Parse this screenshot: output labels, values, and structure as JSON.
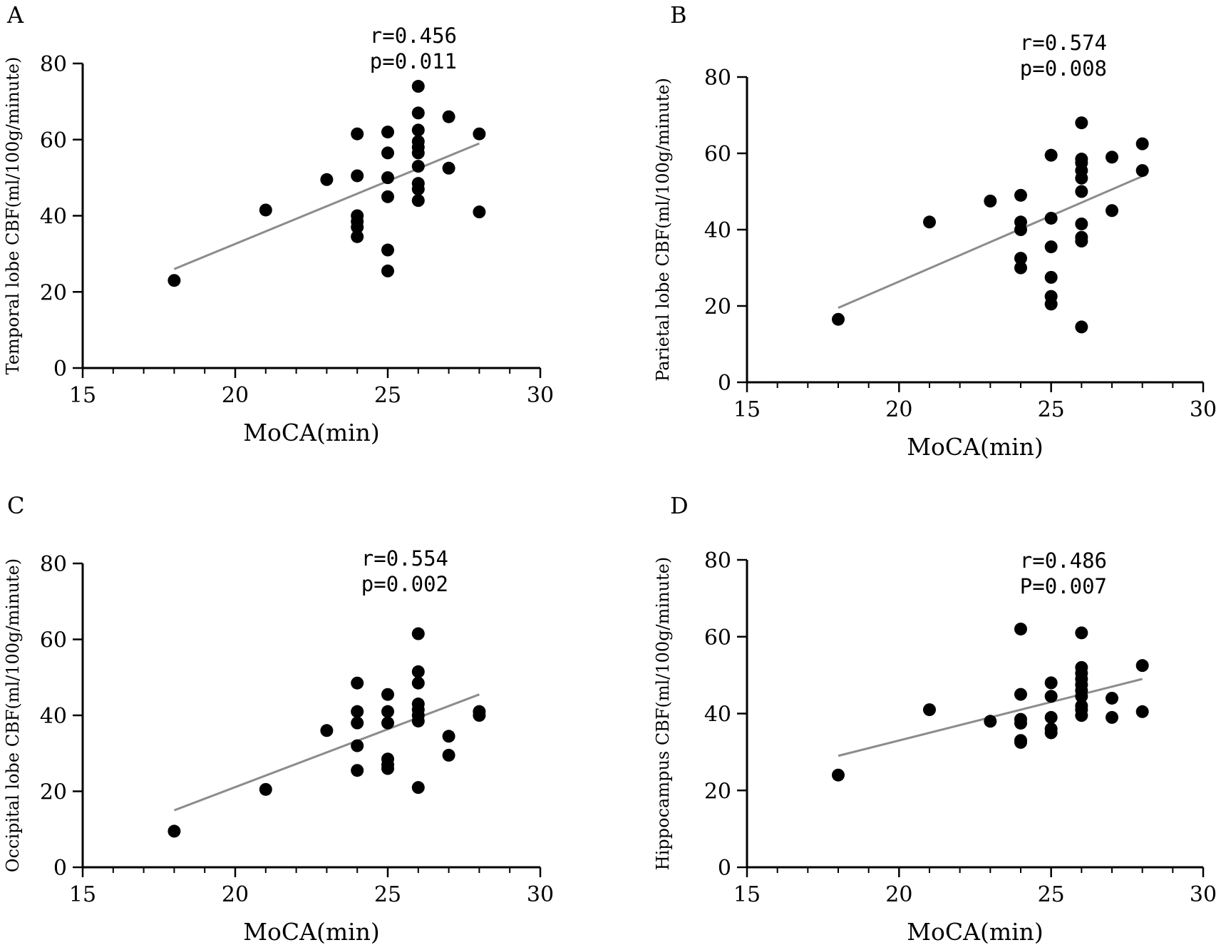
{
  "chart_data": [
    {
      "panel": "A",
      "type": "scatter",
      "xlabel": "MoCA(min)",
      "ylabel": "Temporal lobe CBF(ml/100g/minute)",
      "xlim": [
        15,
        30
      ],
      "ylim": [
        0,
        80
      ],
      "xticks": [
        "15",
        "20",
        "25",
        "30"
      ],
      "yticks": [
        "0",
        "20",
        "40",
        "60",
        "80"
      ],
      "stats": [
        "r=0.456",
        "p=0.011"
      ],
      "fit": {
        "x": [
          18,
          28
        ],
        "y": [
          26,
          59
        ]
      },
      "points": [
        [
          18,
          23
        ],
        [
          21,
          41.5
        ],
        [
          23,
          49.5
        ],
        [
          24,
          61.5
        ],
        [
          24,
          50.5
        ],
        [
          24,
          40
        ],
        [
          24,
          38.5
        ],
        [
          24,
          37
        ],
        [
          24,
          34.5
        ],
        [
          25,
          62
        ],
        [
          25,
          56.5
        ],
        [
          25,
          50
        ],
        [
          25,
          45
        ],
        [
          25,
          31
        ],
        [
          25,
          25.5
        ],
        [
          26,
          74
        ],
        [
          26,
          67
        ],
        [
          26,
          62.5
        ],
        [
          26,
          59.5
        ],
        [
          26,
          58
        ],
        [
          26,
          56.5
        ],
        [
          26,
          53
        ],
        [
          26,
          48.5
        ],
        [
          26,
          47
        ],
        [
          26,
          44
        ],
        [
          27,
          66
        ],
        [
          27,
          52.5
        ],
        [
          28,
          61.5
        ],
        [
          28,
          41
        ]
      ]
    },
    {
      "panel": "B",
      "type": "scatter",
      "xlabel": "MoCA(min)",
      "ylabel": "Parietal lobe CBF(ml/100g/minute)",
      "xlim": [
        15,
        30
      ],
      "ylim": [
        0,
        80
      ],
      "xticks": [
        "15",
        "20",
        "25",
        "30"
      ],
      "yticks": [
        "0",
        "20",
        "40",
        "60",
        "80"
      ],
      "stats": [
        "r=0.574",
        "p=0.008"
      ],
      "fit": {
        "x": [
          18,
          28
        ],
        "y": [
          19.5,
          54
        ]
      },
      "points": [
        [
          18,
          16.5
        ],
        [
          21,
          42
        ],
        [
          23,
          47.5
        ],
        [
          24,
          49
        ],
        [
          24,
          42
        ],
        [
          24,
          40
        ],
        [
          24,
          32.5
        ],
        [
          24,
          30
        ],
        [
          25,
          59.5
        ],
        [
          25,
          43
        ],
        [
          25,
          35.5
        ],
        [
          25,
          27.5
        ],
        [
          25,
          22.5
        ],
        [
          25,
          20.5
        ],
        [
          26,
          68
        ],
        [
          26,
          58.5
        ],
        [
          26,
          57.5
        ],
        [
          26,
          55.5
        ],
        [
          26,
          53.5
        ],
        [
          26,
          50
        ],
        [
          26,
          41.5
        ],
        [
          26,
          38
        ],
        [
          26,
          37
        ],
        [
          26,
          14.5
        ],
        [
          27,
          59
        ],
        [
          27,
          45
        ],
        [
          28,
          62.5
        ],
        [
          28,
          55.5
        ]
      ]
    },
    {
      "panel": "C",
      "type": "scatter",
      "xlabel": "MoCA(min)",
      "ylabel": "Occipital lobe CBF(ml/100g/minute)",
      "xlim": [
        15,
        30
      ],
      "ylim": [
        0,
        80
      ],
      "xticks": [
        "15",
        "20",
        "25",
        "30"
      ],
      "yticks": [
        "0",
        "20",
        "40",
        "60",
        "80"
      ],
      "stats": [
        "r=0.554",
        "p=0.002"
      ],
      "fit": {
        "x": [
          18,
          28
        ],
        "y": [
          15,
          45.5
        ]
      },
      "points": [
        [
          18,
          9.5
        ],
        [
          21,
          20.5
        ],
        [
          23,
          36
        ],
        [
          24,
          48.5
        ],
        [
          24,
          41
        ],
        [
          24,
          38
        ],
        [
          24,
          32
        ],
        [
          24,
          25.5
        ],
        [
          25,
          45.5
        ],
        [
          25,
          41
        ],
        [
          25,
          38
        ],
        [
          25,
          28.5
        ],
        [
          25,
          27
        ],
        [
          25,
          26
        ],
        [
          26,
          61.5
        ],
        [
          26,
          51.5
        ],
        [
          26,
          48.5
        ],
        [
          26,
          43
        ],
        [
          26,
          41.5
        ],
        [
          26,
          40
        ],
        [
          26,
          38.5
        ],
        [
          26,
          21
        ],
        [
          27,
          34.5
        ],
        [
          27,
          29.5
        ],
        [
          28,
          41
        ],
        [
          28,
          40
        ]
      ]
    },
    {
      "panel": "D",
      "type": "scatter",
      "xlabel": "MoCA(min)",
      "ylabel": "Hippocampus CBF(ml/100g/minute)",
      "xlim": [
        15,
        30
      ],
      "ylim": [
        0,
        80
      ],
      "xticks": [
        "15",
        "20",
        "25",
        "30"
      ],
      "yticks": [
        "0",
        "20",
        "40",
        "60",
        "80"
      ],
      "stats": [
        "r=0.486",
        "P=0.007"
      ],
      "fit": {
        "x": [
          18,
          28
        ],
        "y": [
          29,
          49
        ]
      },
      "points": [
        [
          18,
          24
        ],
        [
          21,
          41
        ],
        [
          23,
          38
        ],
        [
          24,
          62
        ],
        [
          24,
          45
        ],
        [
          24,
          38.5
        ],
        [
          24,
          37.5
        ],
        [
          24,
          33
        ],
        [
          24,
          32.5
        ],
        [
          25,
          48
        ],
        [
          25,
          44.5
        ],
        [
          25,
          39
        ],
        [
          25,
          36
        ],
        [
          25,
          35
        ],
        [
          26,
          61
        ],
        [
          26,
          52
        ],
        [
          26,
          50.5
        ],
        [
          26,
          49
        ],
        [
          26,
          47.5
        ],
        [
          26,
          46
        ],
        [
          26,
          44.5
        ],
        [
          26,
          42
        ],
        [
          26,
          41
        ],
        [
          26,
          39.5
        ],
        [
          27,
          44
        ],
        [
          27,
          39
        ],
        [
          28,
          52.5
        ],
        [
          28,
          40.5
        ]
      ]
    }
  ]
}
